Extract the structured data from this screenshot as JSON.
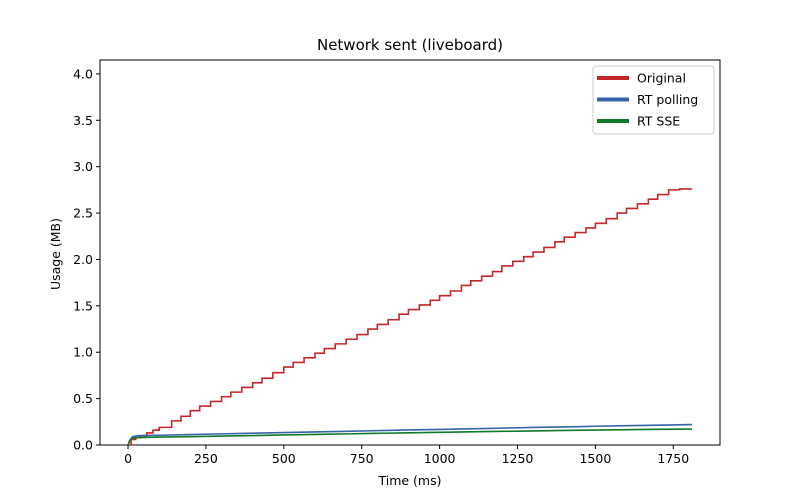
{
  "chart_data": {
    "type": "line",
    "title": "Network sent (liveboard)",
    "xlabel": "Time (ms)",
    "ylabel": "Usage (MB)",
    "xlim": [
      -90,
      1900
    ],
    "ylim": [
      0,
      4.15
    ],
    "xticks": [
      0,
      250,
      500,
      750,
      1000,
      1250,
      1500,
      1750
    ],
    "yticks": [
      0.0,
      0.5,
      1.0,
      1.5,
      2.0,
      2.5,
      3.0,
      3.5,
      4.0
    ],
    "xtick_labels": [
      "0",
      "250",
      "500",
      "750",
      "1000",
      "1250",
      "1500",
      "1750"
    ],
    "ytick_labels": [
      "0.0",
      "0.5",
      "1.0",
      "1.5",
      "2.0",
      "2.5",
      "3.0",
      "3.5",
      "4.0"
    ],
    "grid": false,
    "legend_position": "top-right",
    "series": [
      {
        "name": "Original",
        "color": "#c3272b",
        "step": true,
        "x": [
          0,
          10,
          25,
          40,
          60,
          80,
          100,
          140,
          170,
          200,
          230,
          265,
          300,
          330,
          365,
          400,
          430,
          465,
          500,
          530,
          565,
          600,
          630,
          665,
          700,
          735,
          770,
          800,
          835,
          870,
          900,
          935,
          970,
          1000,
          1035,
          1070,
          1100,
          1135,
          1170,
          1200,
          1235,
          1270,
          1300,
          1335,
          1370,
          1400,
          1435,
          1470,
          1500,
          1535,
          1570,
          1600,
          1635,
          1670,
          1700,
          1735,
          1770,
          1800,
          1810
        ],
        "y": [
          0.0,
          0.06,
          0.08,
          0.1,
          0.13,
          0.16,
          0.19,
          0.26,
          0.31,
          0.37,
          0.42,
          0.47,
          0.52,
          0.57,
          0.62,
          0.67,
          0.72,
          0.78,
          0.84,
          0.89,
          0.94,
          0.99,
          1.04,
          1.09,
          1.14,
          1.19,
          1.25,
          1.3,
          1.35,
          1.41,
          1.46,
          1.51,
          1.56,
          1.61,
          1.66,
          1.72,
          1.77,
          1.82,
          1.87,
          1.93,
          1.98,
          2.03,
          2.08,
          2.13,
          2.19,
          2.24,
          2.29,
          2.34,
          2.39,
          2.44,
          2.5,
          2.55,
          2.6,
          2.65,
          2.7,
          2.75,
          2.76,
          2.76,
          2.76
        ]
      },
      {
        "name": "RT polling",
        "color": "#3565a8",
        "step": false,
        "x": [
          0,
          5,
          15,
          30,
          100,
          200,
          300,
          400,
          500,
          600,
          700,
          800,
          900,
          1000,
          1100,
          1200,
          1300,
          1400,
          1500,
          1600,
          1700,
          1810
        ],
        "y": [
          0.0,
          0.05,
          0.09,
          0.1,
          0.105,
          0.112,
          0.12,
          0.127,
          0.134,
          0.141,
          0.148,
          0.155,
          0.162,
          0.168,
          0.175,
          0.182,
          0.189,
          0.195,
          0.202,
          0.208,
          0.214,
          0.22
        ]
      },
      {
        "name": "RT SSE",
        "color": "#107a2a",
        "step": false,
        "x": [
          0,
          5,
          15,
          30,
          100,
          200,
          300,
          400,
          500,
          600,
          700,
          800,
          900,
          1000,
          1100,
          1200,
          1300,
          1400,
          1500,
          1600,
          1700,
          1810
        ],
        "y": [
          0.0,
          0.04,
          0.075,
          0.08,
          0.085,
          0.09,
          0.096,
          0.102,
          0.108,
          0.114,
          0.12,
          0.126,
          0.131,
          0.137,
          0.142,
          0.147,
          0.152,
          0.157,
          0.161,
          0.165,
          0.169,
          0.172
        ]
      }
    ]
  }
}
